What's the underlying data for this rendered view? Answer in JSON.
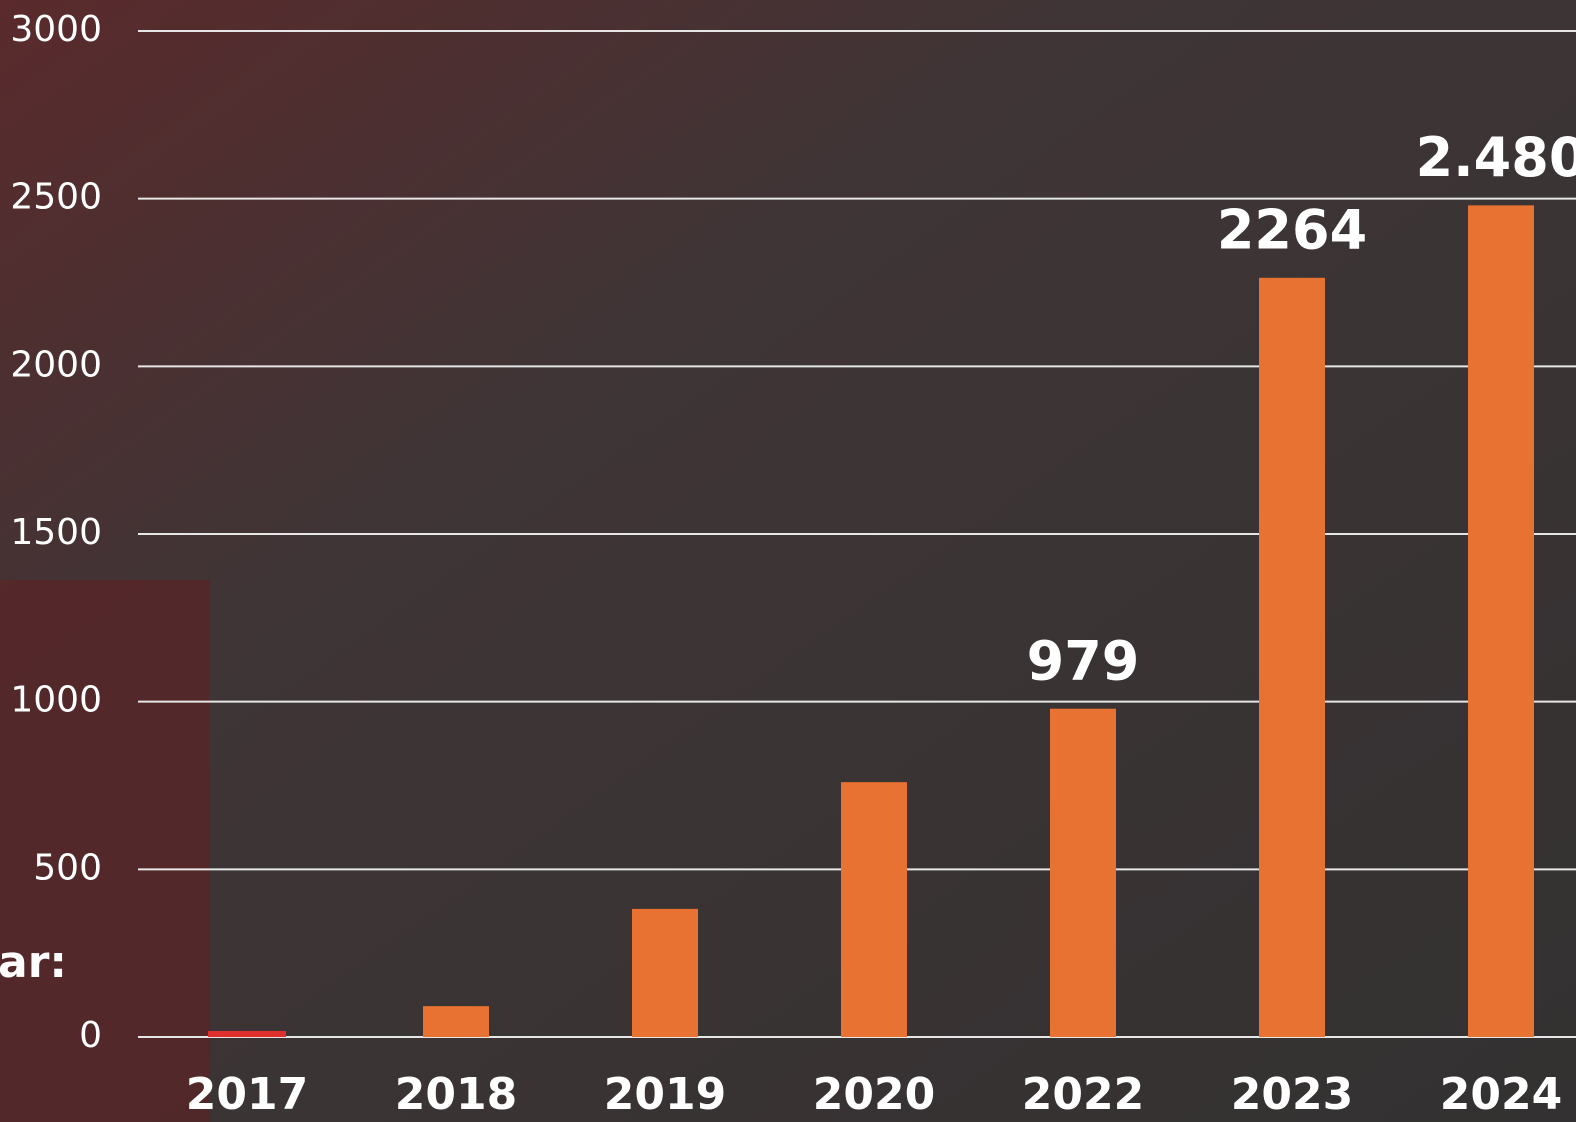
{
  "chart_data": {
    "type": "bar",
    "annotation": "ar:",
    "categories": [
      "2017",
      "2018",
      "2019",
      "2020",
      "2022",
      "2023",
      "2024"
    ],
    "values": [
      18,
      92,
      382,
      760,
      979,
      2264,
      2480
    ],
    "value_labels": [
      null,
      null,
      null,
      null,
      "979",
      "2264",
      "2.480"
    ],
    "colors": [
      "#e0302e",
      "#e87231",
      "#e87231",
      "#e87231",
      "#e87231",
      "#e87231",
      "#e87231"
    ],
    "ylim": [
      0,
      3000
    ],
    "yticks": [
      0,
      500,
      1000,
      1500,
      2000,
      2500,
      3000
    ],
    "grid": true
  }
}
